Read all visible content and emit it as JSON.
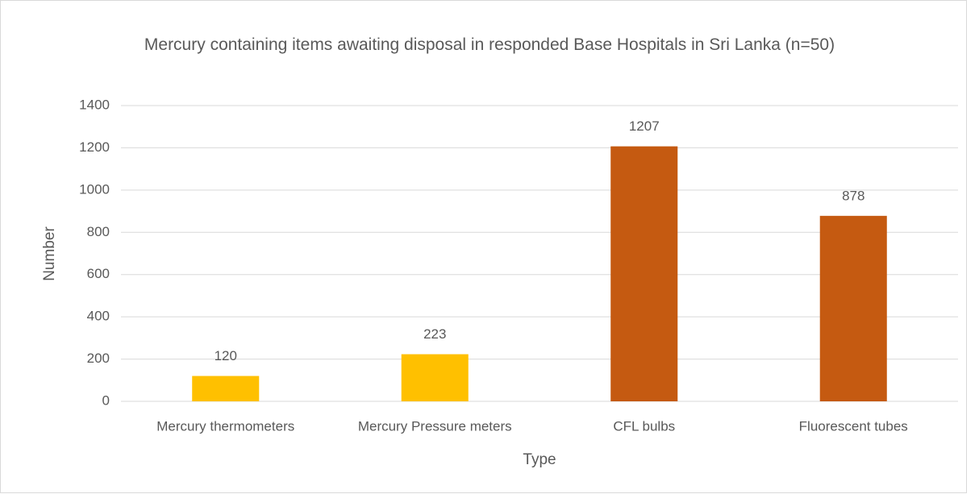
{
  "chart_data": {
    "type": "bar",
    "title": "Mercury containing items awaiting disposal in responded Base Hospitals in Sri Lanka (n=50)",
    "x_label": "Type",
    "y_label": "Number",
    "categories": [
      "Mercury thermometers",
      "Mercury Pressure meters",
      "CFL bulbs",
      "Fluorescent tubes"
    ],
    "values": [
      120,
      223,
      1207,
      878
    ],
    "colors": [
      "#ffc000",
      "#ffc000",
      "#c55a11",
      "#c55a11"
    ],
    "ylim": [
      0,
      1400
    ],
    "yticks": [
      0,
      200,
      400,
      600,
      800,
      1000,
      1200,
      1400
    ],
    "grid": true
  }
}
